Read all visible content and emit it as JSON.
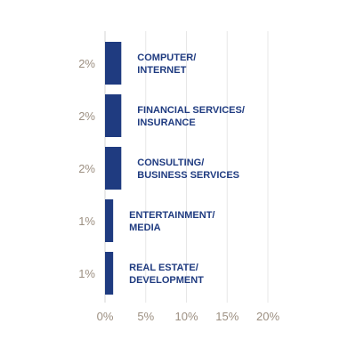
{
  "chart_data": {
    "type": "bar",
    "orientation": "horizontal",
    "title": "",
    "xlabel": "",
    "ylabel": "",
    "categories": [
      "COMPUTER/\nINTERNET",
      "FINANCIAL SERVICES/\nINSURANCE",
      "CONSULTING/\nBUSINESS SERVICES",
      "ENTERTAINMENT/\nMEDIA",
      "REAL ESTATE/\nDEVELOPMENT"
    ],
    "values": [
      2,
      2,
      2,
      1,
      1
    ],
    "value_labels": [
      "2%",
      "2%",
      "2%",
      "1%",
      "1%"
    ],
    "x_ticks": [
      "0%",
      "5%",
      "10%",
      "15%",
      "20%"
    ],
    "x_tick_values": [
      0,
      5,
      10,
      15,
      20
    ],
    "xlim": [
      0,
      20
    ],
    "grid": true,
    "legend": "none",
    "colors": {
      "bar": "#1f3b80",
      "category_text": "#1f3b80",
      "value_text": "#9c8f81",
      "tick_text": "#9c8f81",
      "grid": "#e7e7e7",
      "axis": "#d6d6d6"
    }
  }
}
